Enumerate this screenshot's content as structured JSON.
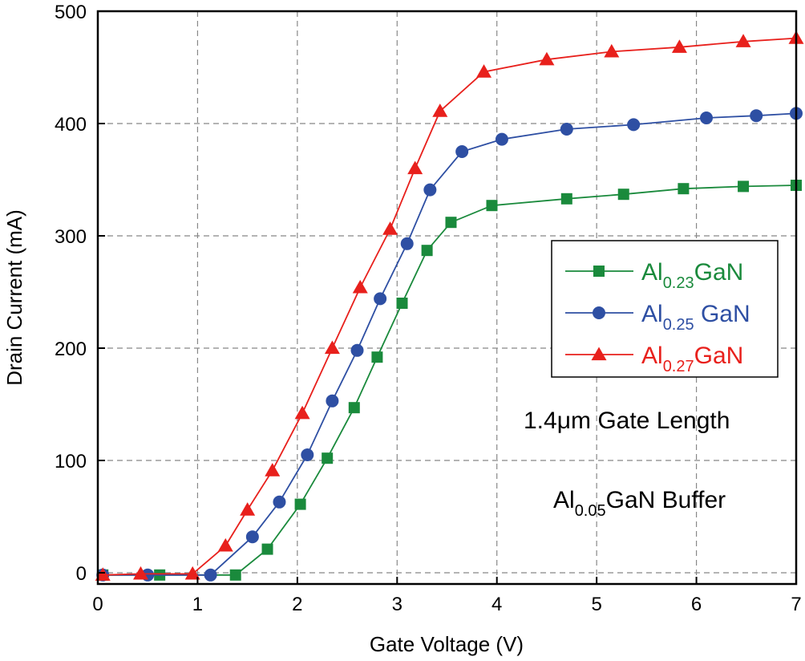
{
  "chart_data": {
    "type": "line",
    "xlabel": "Gate Voltage (V)",
    "ylabel": "Drain Current (mA)",
    "xlim": [
      0,
      7
    ],
    "ylim": [
      -10,
      500
    ],
    "xticks": [
      0,
      1,
      2,
      3,
      4,
      5,
      6,
      7
    ],
    "yticks": [
      0,
      100,
      200,
      300,
      400,
      500
    ],
    "xtick_labels": [
      "0",
      "1",
      "2",
      "3",
      "4",
      "5",
      "6",
      "7"
    ],
    "ytick_labels": [
      "0",
      "100",
      "200",
      "300",
      "400",
      "500"
    ],
    "grid": true,
    "legend_position": "right-middle",
    "series": [
      {
        "name": "Al0.23GaN",
        "label_base": "Al",
        "label_sub": "0.23",
        "label_suffix": "GaN",
        "color": "#1a8a3c",
        "marker": "square",
        "x": [
          0.05,
          0.62,
          1.38,
          1.7,
          2.03,
          2.3,
          2.57,
          2.8,
          3.05,
          3.3,
          3.54,
          3.95,
          4.7,
          5.27,
          5.87,
          6.47,
          7.0
        ],
        "y": [
          -2,
          -2,
          -2,
          21,
          61,
          102,
          147,
          192,
          240,
          287,
          312,
          327,
          333,
          337,
          342,
          344,
          345
        ]
      },
      {
        "name": "Al0.25 GaN",
        "label_base": "Al",
        "label_sub": "0.25",
        "label_suffix": " GaN",
        "color": "#2e4fa3",
        "marker": "circle",
        "x": [
          0.05,
          0.5,
          1.13,
          1.55,
          1.82,
          2.1,
          2.35,
          2.6,
          2.83,
          3.1,
          3.33,
          3.65,
          4.05,
          4.7,
          5.37,
          6.1,
          6.6,
          7.0
        ],
        "y": [
          -2,
          -2,
          -2,
          32,
          63,
          105,
          153,
          198,
          244,
          293,
          341,
          375,
          386,
          395,
          399,
          405,
          407,
          409
        ]
      },
      {
        "name": "Al0.27GaN",
        "label_base": "Al",
        "label_sub": "0.27",
        "label_suffix": "GaN",
        "color": "#e8201c",
        "marker": "triangle",
        "x": [
          0.05,
          0.43,
          0.95,
          1.28,
          1.5,
          1.75,
          2.05,
          2.35,
          2.63,
          2.93,
          3.18,
          3.43,
          3.87,
          4.5,
          5.15,
          5.83,
          6.47,
          7.0
        ],
        "y": [
          -2,
          -1,
          -1,
          24,
          56,
          91,
          142,
          200,
          254,
          306,
          360,
          411,
          446,
          457,
          464,
          468,
          473,
          476
        ]
      }
    ],
    "annotations": [
      {
        "text": "1.4μm Gate Length"
      },
      {
        "text_base": "Al",
        "text_sub": "0.05",
        "text_suffix": "GaN Buffer"
      }
    ]
  }
}
